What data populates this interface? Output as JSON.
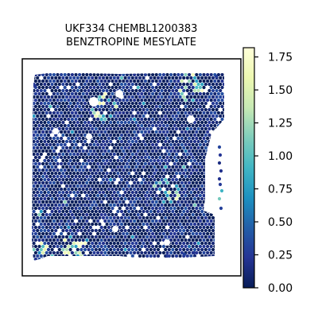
{
  "chart_data": {
    "type": "heatmap",
    "subtype": "spatial-hexbin",
    "title_lines": [
      "UKF334 CHEMBL1200383",
      "BENZTROPINE MESYLATE"
    ],
    "xlabel": "",
    "ylabel": "",
    "grid": false,
    "colormap": "YlGnBu_r",
    "colormap_stops": [
      "#081d58",
      "#253494",
      "#225ea8",
      "#1d91c0",
      "#41b6c4",
      "#7fcdbb",
      "#c7e9b4",
      "#edf8b1",
      "#ffffd9"
    ],
    "colorbar": {
      "range": [
        0.0,
        1.82
      ],
      "ticks": [
        0.0,
        0.25,
        0.5,
        0.75,
        1.0,
        1.25,
        1.5,
        1.75
      ],
      "tick_labels": [
        "0.00",
        "0.25",
        "0.50",
        "0.75",
        "1.00",
        "1.25",
        "1.50",
        "1.75"
      ],
      "placement": "right"
    },
    "value_summary": {
      "typical_range": [
        0.0,
        0.4
      ],
      "max": 1.8,
      "hotspots": [
        "lower-left corner",
        "right edge strip",
        "upper-middle region"
      ]
    }
  },
  "colors": {
    "background": "#ffffff",
    "frame": "#000000",
    "low": "#081d58",
    "high": "#ffffd9"
  }
}
